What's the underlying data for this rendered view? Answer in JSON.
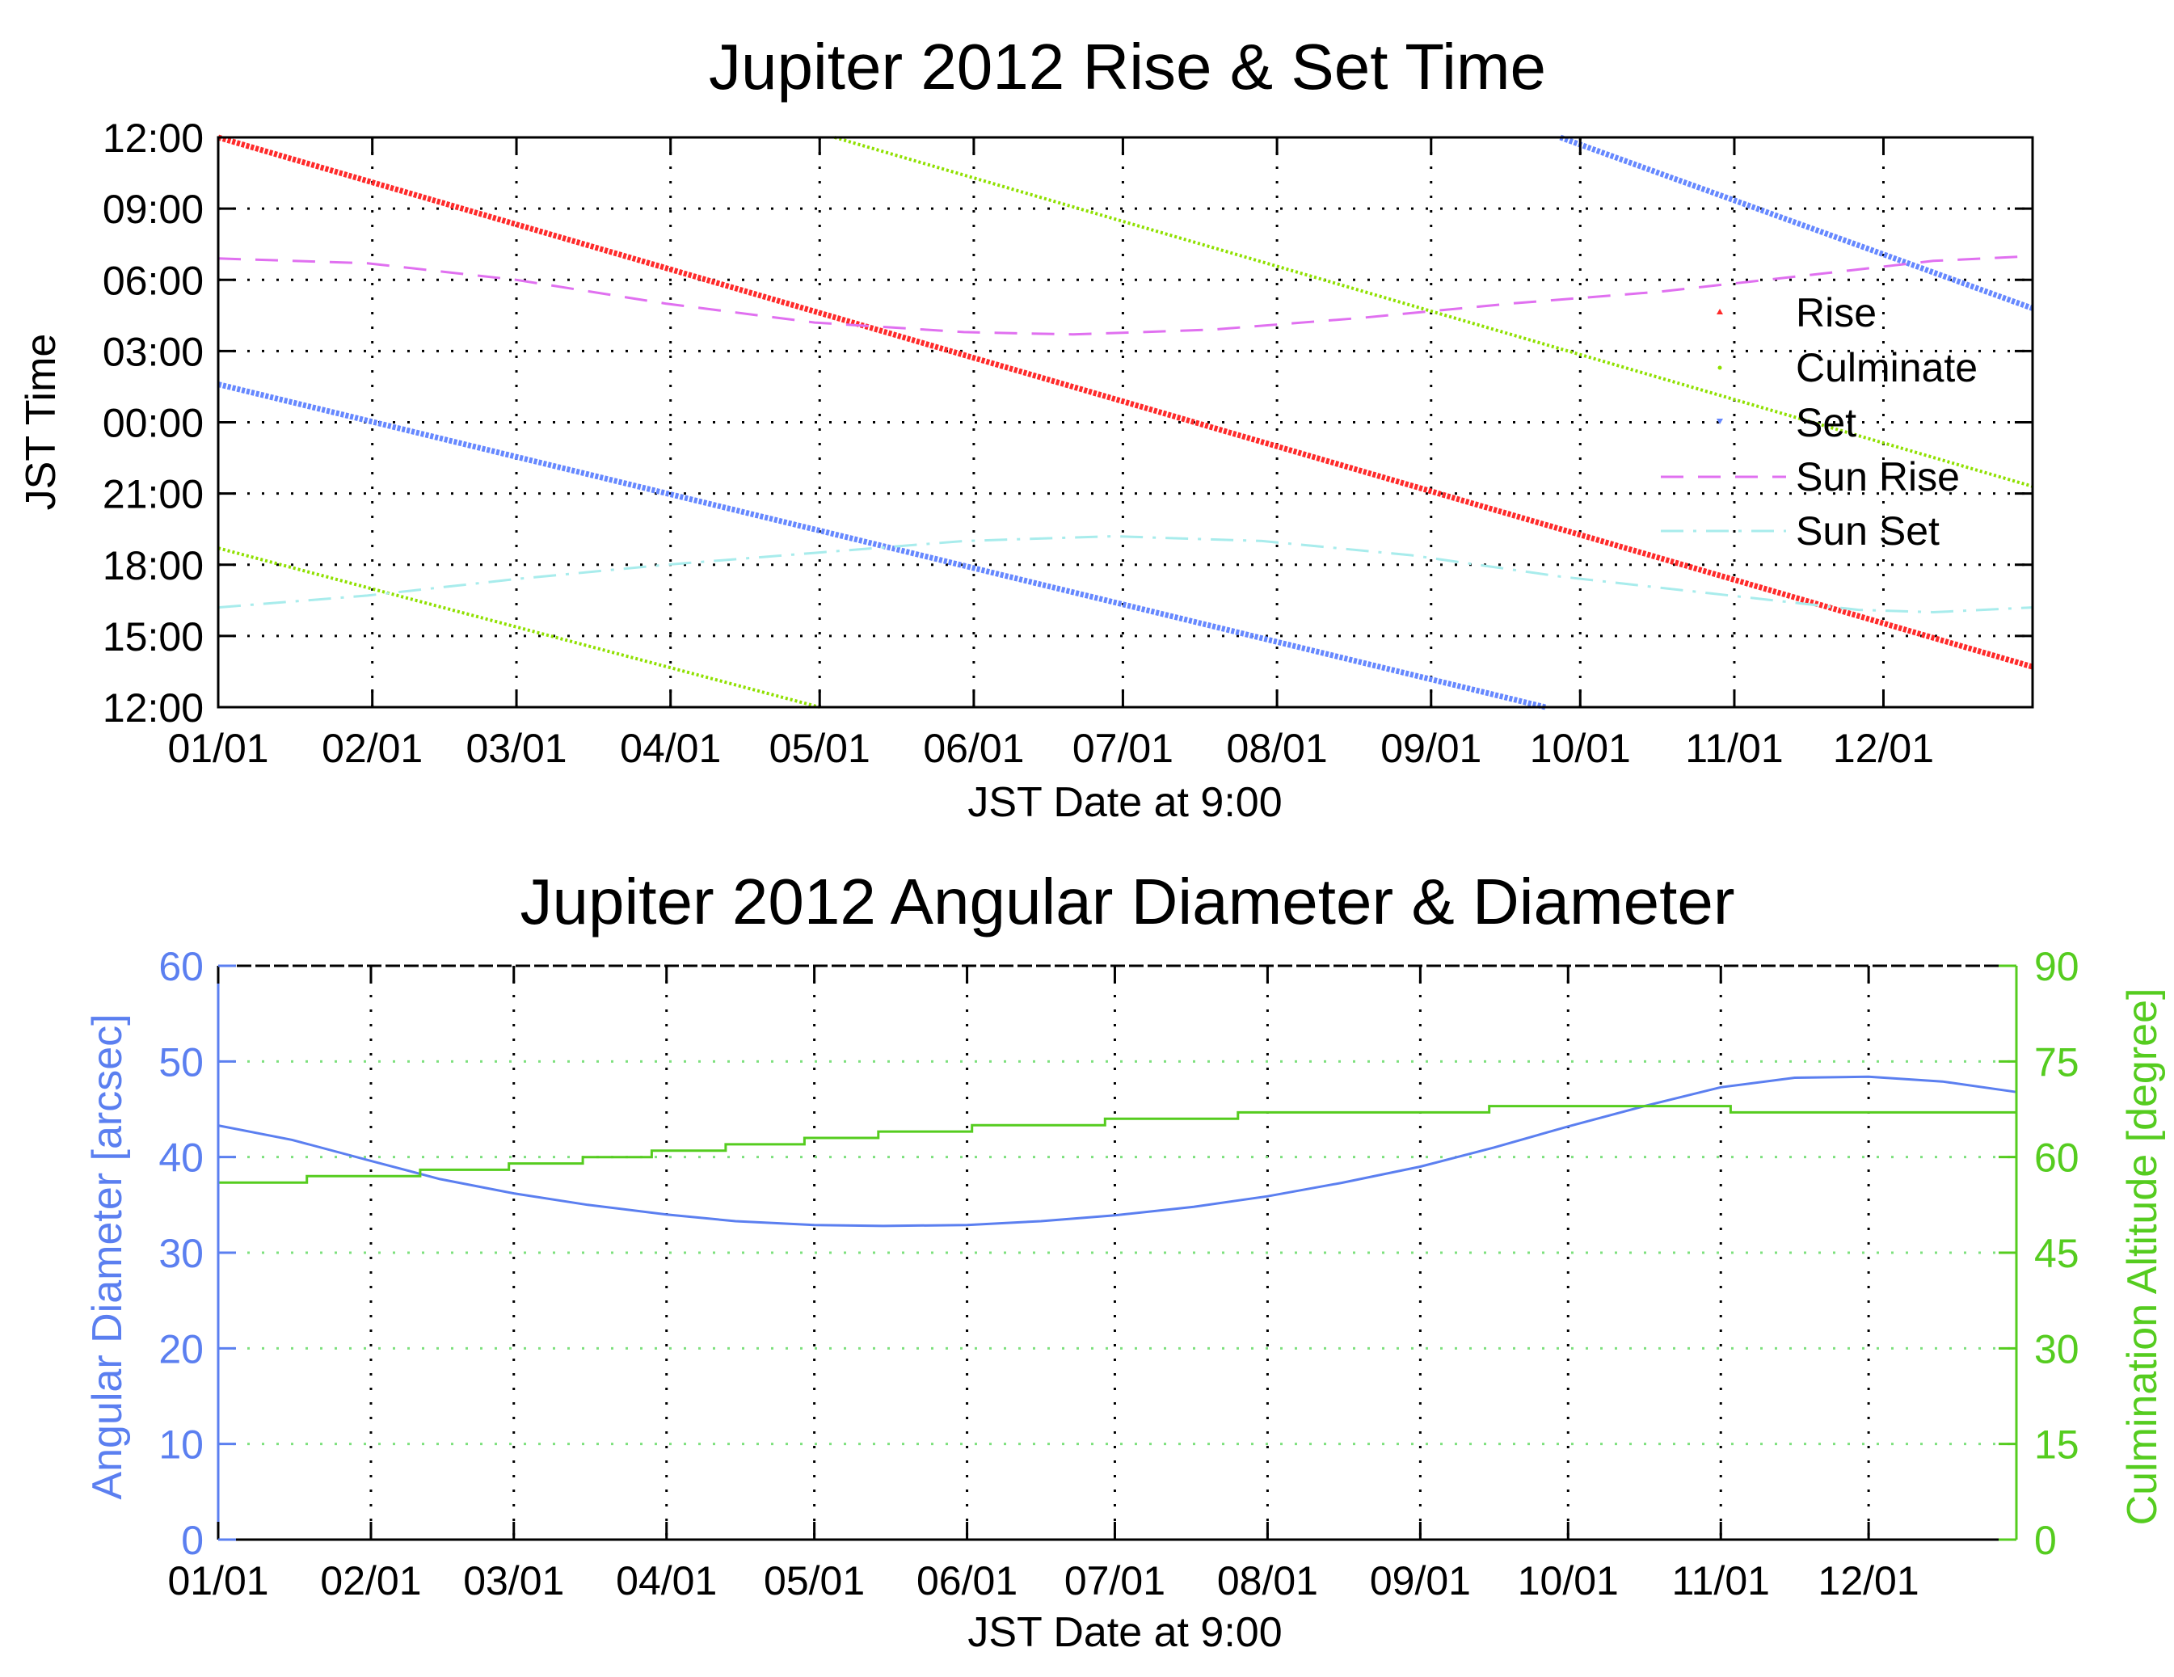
{
  "colors": {
    "rise": "#ff2a2a",
    "culminate": "#8fe000",
    "set": "#6688ff",
    "sun_rise": "#e070f0",
    "sun_set": "#a8ecec",
    "diameter": "#5b7ff0",
    "altitude": "#55cc1f",
    "altitude_grid": "#7ee07e"
  },
  "chart_data": [
    {
      "type": "line",
      "title": "Jupiter 2012 Rise & Set Time",
      "xlabel": "JST Date at 9:00",
      "ylabel": "JST Time",
      "x_tick_labels": [
        "01/01",
        "02/01",
        "03/01",
        "04/01",
        "05/01",
        "06/01",
        "07/01",
        "08/01",
        "09/01",
        "10/01",
        "11/01",
        "12/01"
      ],
      "x_tick_days": [
        0,
        31,
        60,
        91,
        121,
        152,
        182,
        213,
        244,
        274,
        305,
        335
      ],
      "xlim_days": [
        0,
        365
      ],
      "y_tick_labels": [
        "12:00",
        "15:00",
        "18:00",
        "21:00",
        "00:00",
        "03:00",
        "06:00",
        "09:00",
        "12:00"
      ],
      "ylim_hours_after_noon": [
        0,
        24
      ],
      "grid": true,
      "legend_position": "right",
      "series": [
        {
          "name": "Rise",
          "style": "points",
          "segments": [
            [
              [
                0,
                24.0
              ],
              [
                365,
                1.7
              ]
            ]
          ]
        },
        {
          "name": "Culminate",
          "style": "points",
          "segments": [
            [
              [
                0,
                6.7
              ],
              [
                121,
                0.0
              ]
            ],
            [
              [
                124,
                24.0
              ],
              [
                365,
                9.3
              ]
            ]
          ]
        },
        {
          "name": "Set",
          "style": "points",
          "segments": [
            [
              [
                0,
                13.6
              ],
              [
                267,
                0.0
              ]
            ],
            [
              [
                270,
                24.0
              ],
              [
                365,
                16.8
              ]
            ]
          ]
        },
        {
          "name": "Sun Rise",
          "style": "dashed",
          "points": [
            [
              0,
              18.9
            ],
            [
              30,
              18.7
            ],
            [
              60,
              18.0
            ],
            [
              90,
              17.0
            ],
            [
              120,
              16.2
            ],
            [
              150,
              15.8
            ],
            [
              172,
              15.7
            ],
            [
              200,
              15.9
            ],
            [
              230,
              16.4
            ],
            [
              260,
              17.0
            ],
            [
              290,
              17.5
            ],
            [
              320,
              18.2
            ],
            [
              345,
              18.8
            ],
            [
              365,
              19.0
            ]
          ]
        },
        {
          "name": "Sun Set",
          "style": "dashdot",
          "points": [
            [
              0,
              4.2
            ],
            [
              30,
              4.7
            ],
            [
              60,
              5.4
            ],
            [
              90,
              6.0
            ],
            [
              120,
              6.5
            ],
            [
              150,
              7.0
            ],
            [
              180,
              7.2
            ],
            [
              210,
              7.0
            ],
            [
              240,
              6.4
            ],
            [
              270,
              5.5
            ],
            [
              300,
              4.8
            ],
            [
              330,
              4.1
            ],
            [
              345,
              4.0
            ],
            [
              365,
              4.2
            ]
          ]
        }
      ]
    },
    {
      "type": "line",
      "title": "Jupiter 2012 Angular Diameter & Diameter",
      "xlabel": "JST Date at 9:00",
      "ylabel_left": "Angular Diameter [arcsec]",
      "ylabel_right": "Culmination Altitude [degree]",
      "x_tick_labels": [
        "01/01",
        "02/01",
        "03/01",
        "04/01",
        "05/01",
        "06/01",
        "07/01",
        "08/01",
        "09/01",
        "10/01",
        "11/01",
        "12/01"
      ],
      "x_tick_days": [
        0,
        31,
        60,
        91,
        121,
        152,
        182,
        213,
        244,
        274,
        305,
        335
      ],
      "xlim_days": [
        0,
        365
      ],
      "ylim_left": [
        0,
        60
      ],
      "y_ticks_left": [
        0,
        10,
        20,
        30,
        40,
        50,
        60
      ],
      "ylim_right": [
        0,
        90
      ],
      "y_ticks_right": [
        0,
        15,
        30,
        45,
        60,
        75,
        90
      ],
      "grid": true,
      "series": [
        {
          "name": "Angular Diameter",
          "axis": "left",
          "style": "line",
          "points": [
            [
              0,
              43.3
            ],
            [
              15,
              41.8
            ],
            [
              31,
              39.6
            ],
            [
              45,
              37.7
            ],
            [
              60,
              36.2
            ],
            [
              75,
              35.0
            ],
            [
              91,
              34.0
            ],
            [
              105,
              33.3
            ],
            [
              121,
              32.9
            ],
            [
              135,
              32.8
            ],
            [
              152,
              32.9
            ],
            [
              167,
              33.3
            ],
            [
              182,
              33.9
            ],
            [
              198,
              34.8
            ],
            [
              213,
              35.9
            ],
            [
              228,
              37.3
            ],
            [
              244,
              39.0
            ],
            [
              259,
              41.0
            ],
            [
              274,
              43.2
            ],
            [
              290,
              45.4
            ],
            [
              305,
              47.3
            ],
            [
              320,
              48.3
            ],
            [
              335,
              48.4
            ],
            [
              350,
              47.9
            ],
            [
              365,
              46.8
            ]
          ]
        },
        {
          "name": "Culmination Altitude",
          "axis": "right",
          "style": "steps",
          "points": [
            [
              0,
              56
            ],
            [
              18,
              57
            ],
            [
              41,
              58
            ],
            [
              59,
              59
            ],
            [
              74,
              60
            ],
            [
              88,
              61
            ],
            [
              103,
              62
            ],
            [
              119,
              63
            ],
            [
              134,
              64
            ],
            [
              153,
              65
            ],
            [
              180,
              66
            ],
            [
              207,
              67
            ],
            [
              258,
              68
            ],
            [
              307,
              67
            ],
            [
              365,
              67
            ]
          ]
        }
      ]
    }
  ]
}
